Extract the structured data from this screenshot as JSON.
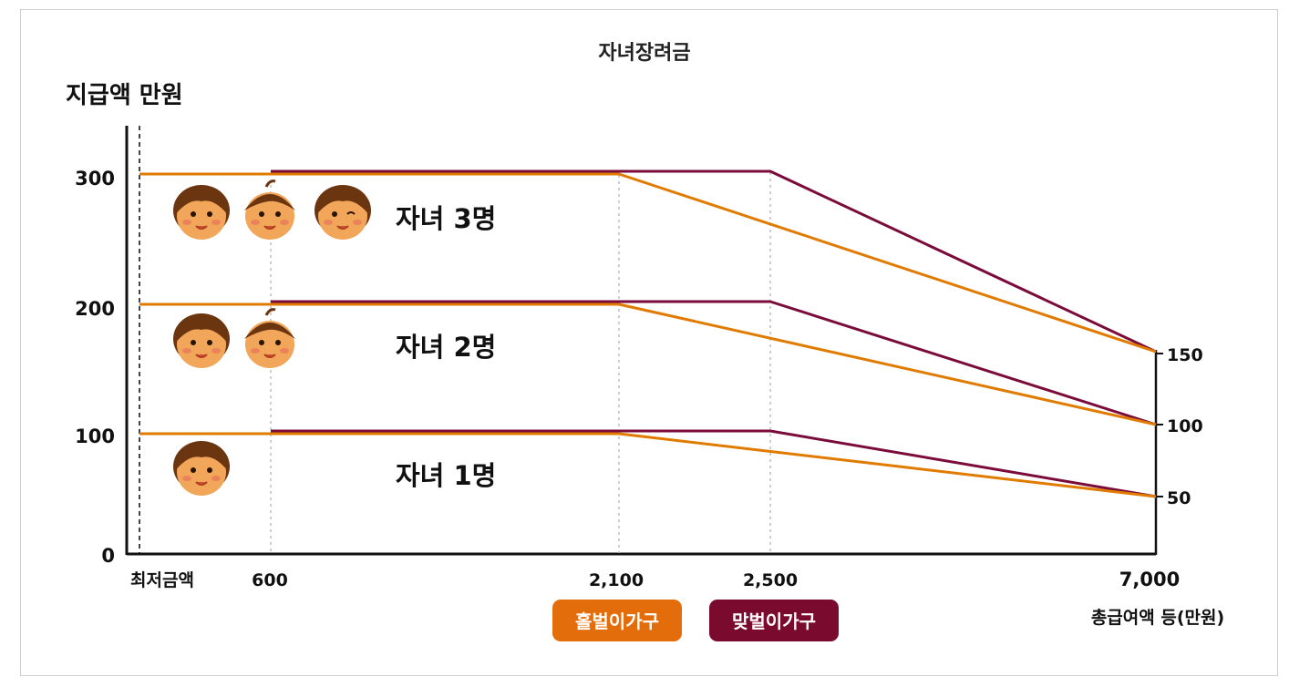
{
  "title": "자녀장려금",
  "chart_data": {
    "type": "line",
    "ylabel": "지급액 만원",
    "xlabel": "총급여액 등(만원)",
    "x_labels": [
      "최저금액",
      "600",
      "2,100",
      "2,500",
      "7,000"
    ],
    "y_ticks": [
      "0",
      "100",
      "200",
      "300"
    ],
    "right_ticks": [
      "150",
      "100",
      "50"
    ],
    "series": [
      {
        "name": "홀벌이가구",
        "color": "#e07b00",
        "groups": [
          {
            "label": "자녀 1명",
            "points": [
              [
                0,
                100
              ],
              [
                2100,
                100
              ],
              [
                7000,
                50
              ]
            ]
          },
          {
            "label": "자녀 2명",
            "points": [
              [
                0,
                200
              ],
              [
                2100,
                200
              ],
              [
                7000,
                100
              ]
            ]
          },
          {
            "label": "자녀 3명",
            "points": [
              [
                0,
                300
              ],
              [
                2100,
                300
              ],
              [
                7000,
                150
              ]
            ]
          }
        ]
      },
      {
        "name": "맞벌이가구",
        "color": "#7a0b3a",
        "groups": [
          {
            "label": "자녀 1명",
            "points": [
              [
                600,
                100
              ],
              [
                2500,
                100
              ],
              [
                7000,
                50
              ]
            ]
          },
          {
            "label": "자녀 2명",
            "points": [
              [
                600,
                200
              ],
              [
                2500,
                200
              ],
              [
                7000,
                100
              ]
            ]
          },
          {
            "label": "자녀 3명",
            "points": [
              [
                600,
                300
              ],
              [
                2500,
                300
              ],
              [
                7000,
                150
              ]
            ]
          }
        ]
      }
    ],
    "group_labels": [
      "자녀 3명",
      "자녀 2명",
      "자녀 1명"
    ],
    "children_icons": [
      3,
      2,
      1
    ]
  }
}
